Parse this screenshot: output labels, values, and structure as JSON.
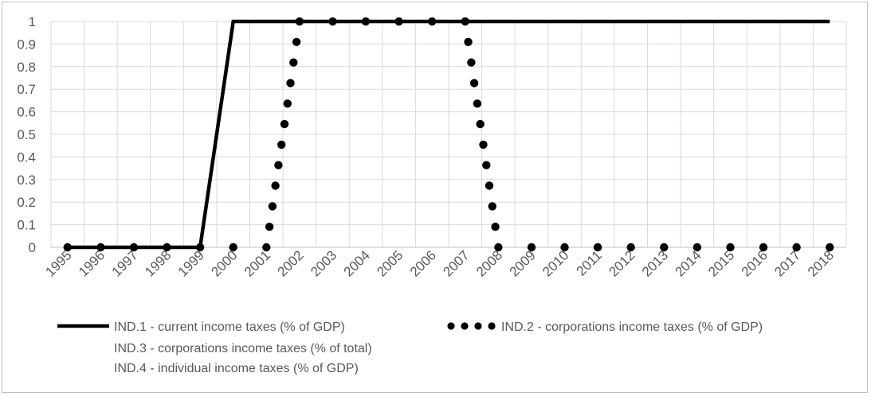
{
  "chart_data": {
    "type": "line",
    "x": [
      "1995",
      "1996",
      "1997",
      "1998",
      "1999",
      "2000",
      "2001",
      "2002",
      "2003",
      "2004",
      "2005",
      "2006",
      "2007",
      "2008",
      "2009",
      "2010",
      "2011",
      "2012",
      "2013",
      "2014",
      "2015",
      "2016",
      "2017",
      "2018"
    ],
    "y_ticks": [
      "0",
      "0.1",
      "0.2",
      "0.3",
      "0.4",
      "0.5",
      "0.6",
      "0.7",
      "0.8",
      "0.9",
      "1"
    ],
    "ylim": [
      0,
      1
    ],
    "grid": "horizontal major and vertical category gridlines",
    "legend_position": "bottom",
    "series": [
      {
        "name": "IND.1 - current income taxes (% of GDP)",
        "style": "solid",
        "color": "#000000",
        "points": [
          [
            "1995",
            0
          ],
          [
            "1996",
            0
          ],
          [
            "1997",
            0
          ],
          [
            "1998",
            0
          ],
          [
            "1999",
            0
          ],
          [
            "2000",
            1
          ],
          [
            "2001",
            1
          ],
          [
            "2002",
            1
          ],
          [
            "2003",
            1
          ],
          [
            "2004",
            1
          ],
          [
            "2005",
            1
          ],
          [
            "2006",
            1
          ],
          [
            "2007",
            1
          ],
          [
            "2008",
            1
          ],
          [
            "2009",
            1
          ],
          [
            "2010",
            1
          ],
          [
            "2011",
            1
          ],
          [
            "2012",
            1
          ],
          [
            "2013",
            1
          ],
          [
            "2014",
            1
          ],
          [
            "2015",
            1
          ],
          [
            "2016",
            1
          ],
          [
            "2017",
            1
          ],
          [
            "2018",
            1
          ]
        ]
      },
      {
        "name": "IND.2 - corporations income taxes (% of GDP)",
        "style": "dotted",
        "color": "#000000",
        "points": [
          [
            "1995",
            0
          ],
          [
            "1996",
            0
          ],
          [
            "1997",
            0
          ],
          [
            "1998",
            0
          ],
          [
            "1999",
            0
          ],
          [
            "2000",
            0
          ],
          [
            "2001",
            0
          ],
          [
            "2002",
            1
          ],
          [
            "2003",
            1
          ],
          [
            "2004",
            1
          ],
          [
            "2005",
            1
          ],
          [
            "2006",
            1
          ],
          [
            "2007",
            1
          ],
          [
            "2008",
            0
          ],
          [
            "2009",
            0
          ],
          [
            "2010",
            0
          ],
          [
            "2011",
            0
          ],
          [
            "2012",
            0
          ],
          [
            "2013",
            0
          ],
          [
            "2014",
            0
          ],
          [
            "2015",
            0
          ],
          [
            "2016",
            0
          ],
          [
            "2017",
            0
          ],
          [
            "2018",
            0
          ]
        ]
      },
      {
        "name": "IND.3 - corporations income taxes (% of total)",
        "style": "none",
        "color": "#000000",
        "points": []
      },
      {
        "name": "IND.4 - individual income taxes (% of GDP)",
        "style": "none",
        "color": "#000000",
        "points": []
      }
    ]
  }
}
